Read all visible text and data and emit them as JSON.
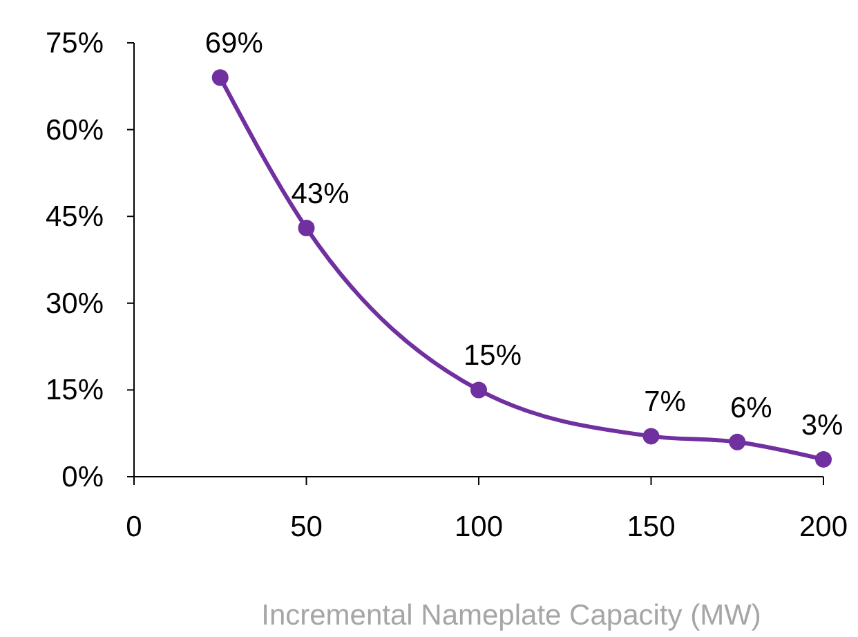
{
  "chart_data": {
    "type": "line",
    "xlabel": "Incremental Nameplate Capacity (MW)",
    "x": [
      25,
      50,
      100,
      150,
      175,
      200
    ],
    "series": [
      {
        "color": "#7030a0",
        "values": [
          69,
          43,
          15,
          7,
          6,
          3
        ],
        "value_labels": [
          "69%",
          "43%",
          "15%",
          "7%",
          "6%",
          "3%"
        ]
      }
    ],
    "xlim": [
      0,
      200
    ],
    "xticks": [
      0,
      50,
      100,
      150,
      200
    ],
    "ylim": [
      0,
      75
    ],
    "yticks": [
      {
        "value": 0,
        "label": "0%"
      },
      {
        "value": 15,
        "label": "15%"
      },
      {
        "value": 30,
        "label": "30%"
      },
      {
        "value": 45,
        "label": "45%"
      },
      {
        "value": 60,
        "label": "60%"
      },
      {
        "value": 75,
        "label": "75%"
      }
    ],
    "marker": "circle",
    "line_style": "solid",
    "grid": false
  }
}
